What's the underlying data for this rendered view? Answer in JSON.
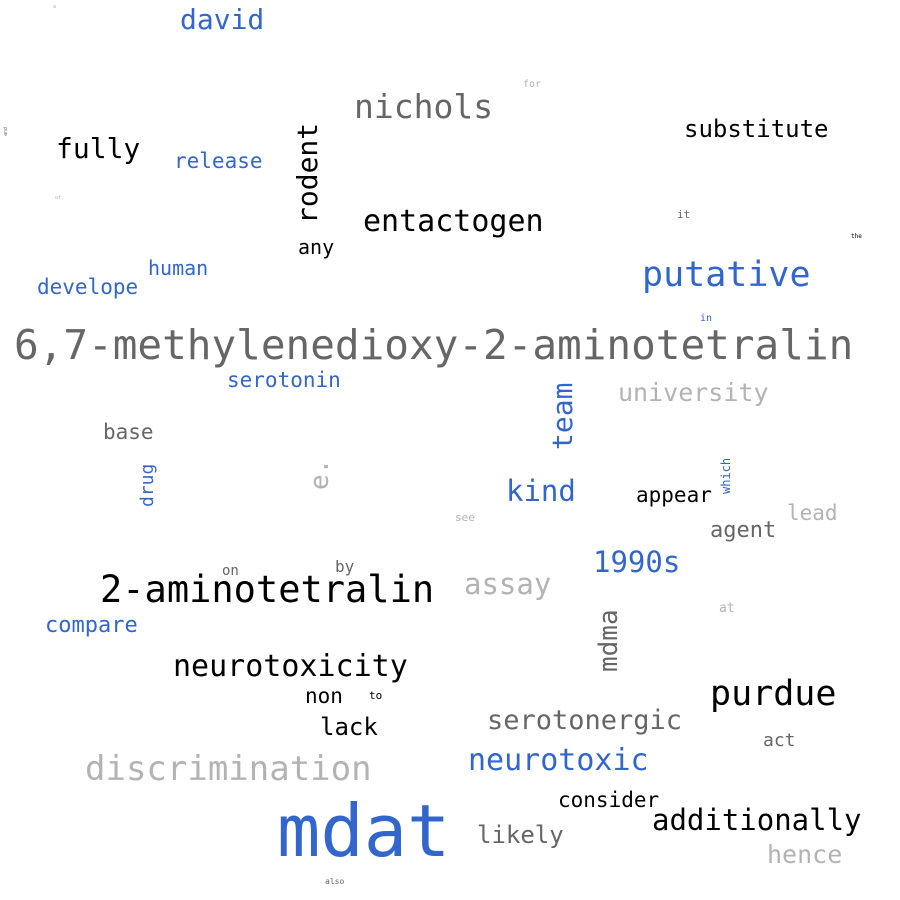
{
  "words": {
    "w1": "6,7-methylenedioxy-2-aminotetralin",
    "w2": "mdat",
    "w3": "2-aminotetralin",
    "w4": "nichols",
    "w5": "putative",
    "w6": "purdue",
    "w7": "discrimination",
    "w8": "neurotoxicity",
    "w9": "entactogen",
    "w10": "david",
    "w11": "neurotoxic",
    "w12": "serotonergic",
    "w13": "rodent",
    "w14": "fully",
    "w15": "substitute",
    "w16": "university",
    "w17": "assay",
    "w18": "additionally",
    "w19": "mdma",
    "w20": "team",
    "w21": "1990s",
    "w22": "kind",
    "w23": "release",
    "w24": "human",
    "w25": "develope",
    "w26": "serotonin",
    "w27": "base",
    "w28": "compare",
    "w29": "lack",
    "w30": "likely",
    "w31": "hence",
    "w32": "consider",
    "w33": "appear",
    "w34": "agent",
    "w35": "lead",
    "w36": "non",
    "w37": "any",
    "w38": "drug",
    "w39": "e.",
    "w40": "act",
    "w41": "by",
    "w42": "on",
    "w43": "to",
    "w44": "at",
    "w45": "which",
    "w46": "see",
    "w47": "in",
    "w48": "it",
    "w49": "for",
    "w50": "the",
    "w51": "also",
    "w52": "and",
    "w53": "of",
    "w54": "a"
  },
  "colors": {
    "blue": "#3366cc",
    "black": "#000000",
    "dark_gray": "#666666",
    "light_gray": "#b3b3b3"
  }
}
